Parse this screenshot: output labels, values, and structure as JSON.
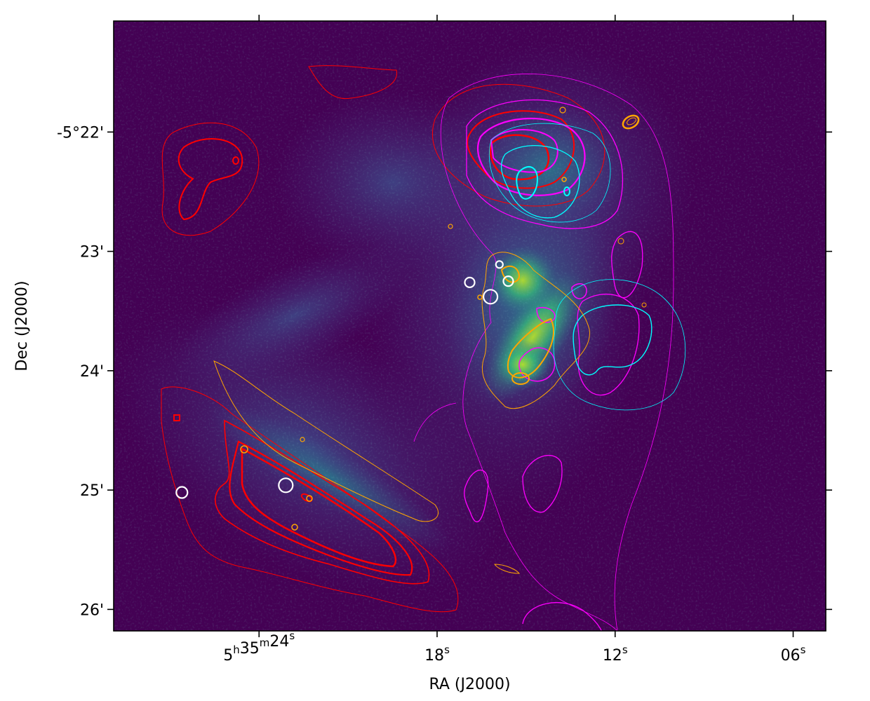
{
  "chart_data": {
    "type": "heatmap",
    "title": "",
    "xlabel": "RA (J2000)",
    "ylabel": "Dec (J2000)",
    "x_ticks": [
      {
        "ra_sec": 24,
        "label_main": "5",
        "label_sup1": "h",
        "label_mid": "35",
        "label_sup2": "m",
        "label_end": "24",
        "label_sup3": "s"
      },
      {
        "ra_sec": 18,
        "label_main": "18",
        "label_sup3": "s"
      },
      {
        "ra_sec": 12,
        "label_main": "12",
        "label_sup3": "s"
      },
      {
        "ra_sec": 6,
        "label_main": "06",
        "label_sup3": "s"
      }
    ],
    "y_ticks": [
      {
        "dec_arcmin": -22,
        "label": "-5°22'"
      },
      {
        "dec_arcmin": -23,
        "label": "23'"
      },
      {
        "dec_arcmin": -24,
        "label": "24'"
      },
      {
        "dec_arcmin": -25,
        "label": "25'"
      },
      {
        "dec_arcmin": -26,
        "label": "26'"
      }
    ],
    "ra_range_sec": [
      28.9,
      4.9
    ],
    "dec_range_arcmin": [
      -21.07,
      -26.18
    ],
    "background_color": "#440154",
    "colormap": "viridis",
    "contour_series": [
      {
        "color": "#ff0000"
      },
      {
        "color": "#ff00ff"
      },
      {
        "color": "#00ffff"
      },
      {
        "color": "#ffa500"
      }
    ],
    "markers": [
      {
        "ra_sec": 26.6,
        "dec_arcmin": -25.02,
        "color": "#ffffff"
      },
      {
        "ra_sec": 23.1,
        "dec_arcmin": -24.96,
        "color": "#ffffff"
      },
      {
        "ra_sec": 16.9,
        "dec_arcmin": -23.26,
        "color": "#ffffff"
      },
      {
        "ra_sec": 16.2,
        "dec_arcmin": -23.38,
        "color": "#ffffff"
      },
      {
        "ra_sec": 15.6,
        "dec_arcmin": -23.25,
        "color": "#ffffff"
      },
      {
        "ra_sec": 15.9,
        "dec_arcmin": -23.11,
        "color": "#ffffff"
      }
    ]
  }
}
